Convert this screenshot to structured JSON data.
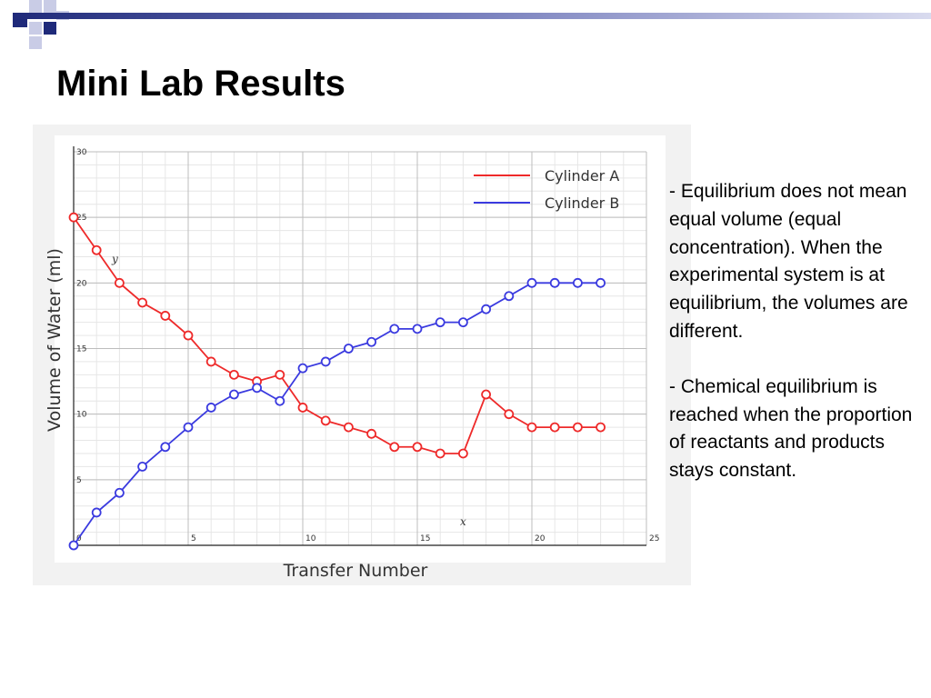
{
  "slide": {
    "title": "Mini Lab Results",
    "notes": [
      "- Equilibrium does not mean equal volume (equal concentration). When the experimental system is at equilibrium, the volumes are different.",
      "- Chemical equilibrium is reached when the proportion of reactants and products stays constant."
    ]
  },
  "colors": {
    "title_bar": "#1f2a7a",
    "cylinder_a": "#ee2a2a",
    "cylinder_b": "#3a3adf"
  },
  "chart_data": {
    "type": "line",
    "title": "",
    "xlabel": "Transfer Number",
    "ylabel": "Volume of Water (ml)",
    "x_axis_letter": "x",
    "y_axis_letter": "y",
    "xlim": [
      0,
      25
    ],
    "ylim": [
      0,
      30
    ],
    "x_ticks": [
      0,
      5,
      10,
      15,
      20,
      25
    ],
    "y_ticks": [
      5,
      10,
      15,
      20,
      25,
      30
    ],
    "grid": true,
    "legend_position": "top-right",
    "x": [
      0,
      1,
      2,
      3,
      4,
      5,
      6,
      7,
      8,
      9,
      10,
      11,
      12,
      13,
      14,
      15,
      16,
      17,
      18,
      19,
      20,
      21,
      22,
      23
    ],
    "series": [
      {
        "name": "Cylinder A",
        "color": "#ee2a2a",
        "values": [
          25,
          22.5,
          20,
          18.5,
          17.5,
          16,
          14,
          13,
          12.5,
          13,
          10.5,
          9.5,
          9,
          8.5,
          7.5,
          7.5,
          7,
          7,
          11.5,
          10,
          9,
          9,
          9,
          9
        ]
      },
      {
        "name": "Cylinder B",
        "color": "#3a3adf",
        "values": [
          0,
          2.5,
          4,
          6,
          7.5,
          9,
          10.5,
          11.5,
          12,
          11,
          13.5,
          14,
          15,
          15.5,
          16.5,
          16.5,
          17,
          17,
          18,
          19,
          20,
          20,
          20,
          20
        ]
      }
    ]
  }
}
